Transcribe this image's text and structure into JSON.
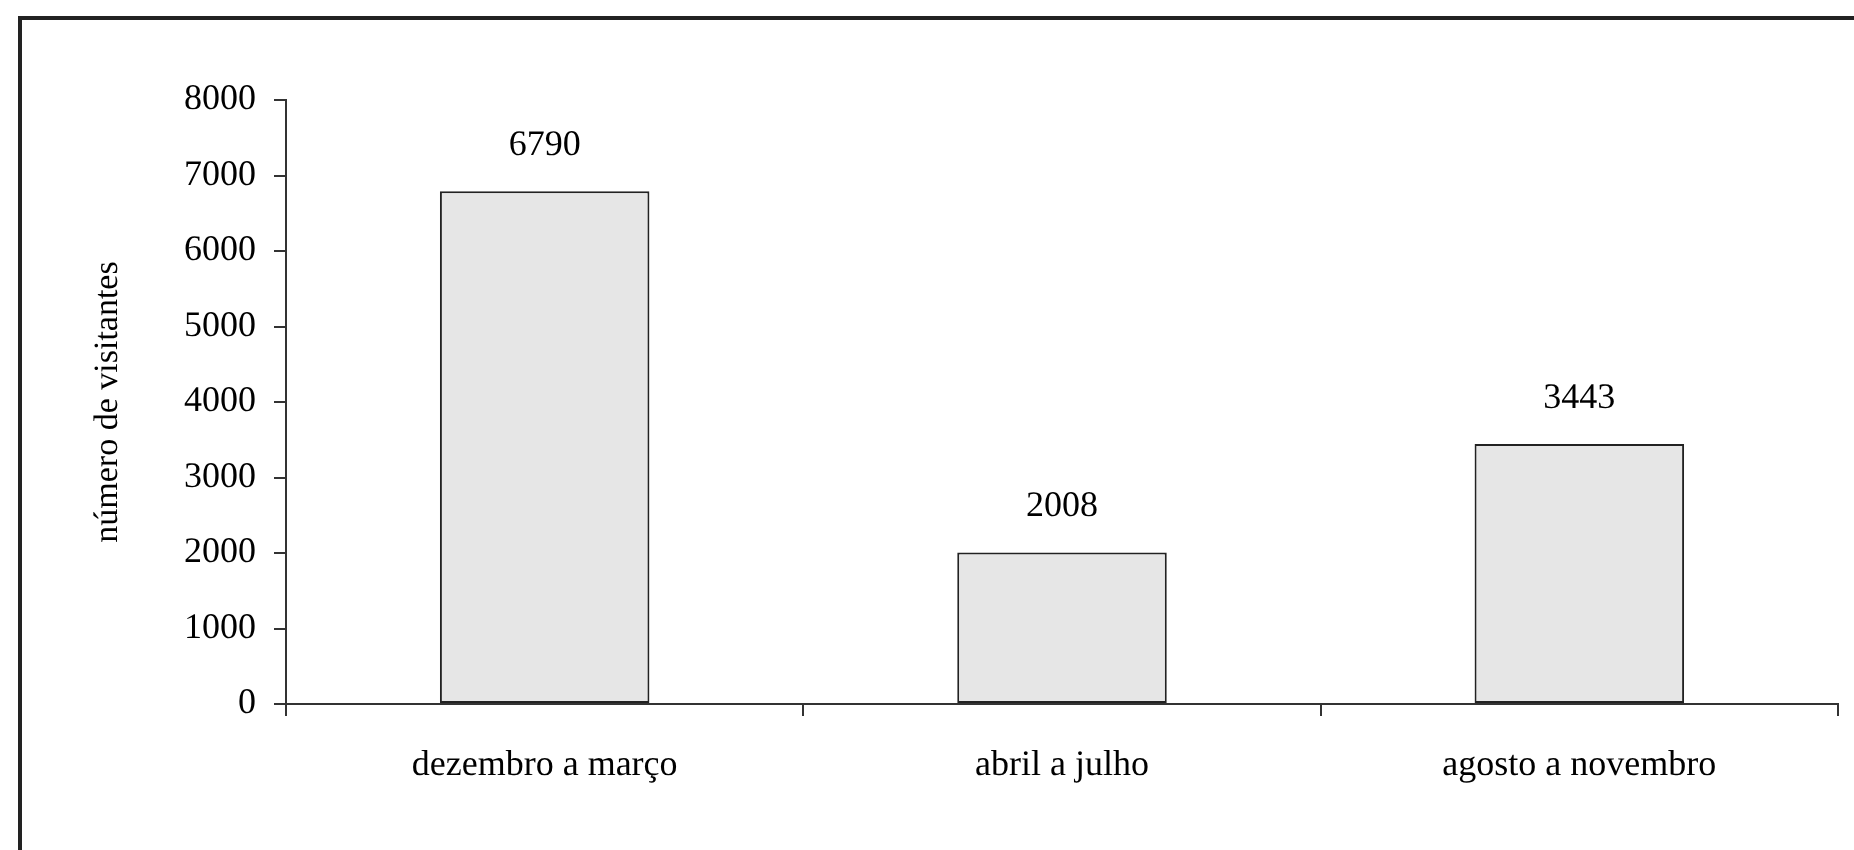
{
  "chart_data": {
    "type": "bar",
    "categories": [
      "dezembro a março",
      "abril a julho",
      "agosto a novembro"
    ],
    "values": [
      6790,
      2008,
      3443
    ],
    "color": "#e6e6e6",
    "ylabel": "número de visitantes",
    "ylim": [
      0,
      8000
    ],
    "yticks": [
      0,
      1000,
      2000,
      3000,
      4000,
      5000,
      6000,
      7000,
      8000
    ],
    "data_labels": true,
    "grid": false,
    "legend": false
  }
}
